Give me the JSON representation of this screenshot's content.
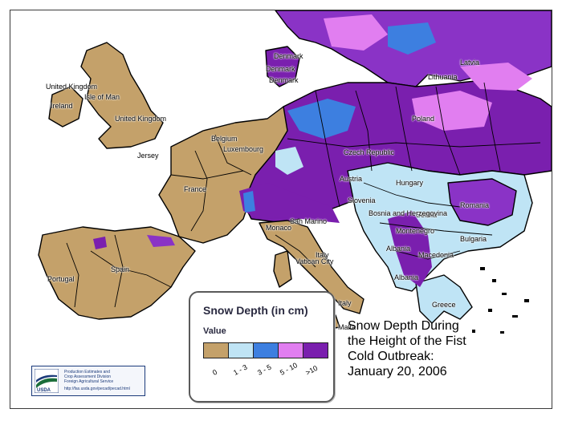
{
  "map": {
    "colors": {
      "land_base": "#c4a16a",
      "sea": "#ffffff",
      "border": "#000000"
    },
    "country_labels": [
      "United Kingdom",
      "United Kingdom",
      "Isle of Man",
      "Ireland",
      "Jersey",
      "Belgium",
      "Luxembourg",
      "Denmark",
      "Denmark",
      "Denmark",
      "France",
      "Spain",
      "Portugal",
      "Italy",
      "Italy",
      "San Marino",
      "Vatican City",
      "Malta",
      "Monaco",
      "Poland",
      "Lithuania",
      "Latvia",
      "Czech Republic",
      "Austria",
      "Slovenia",
      "Hungary",
      "Romania",
      "Serbia",
      "Bosnia and Herzegovina",
      "Montenegro",
      "Albania",
      "Albania",
      "Macedonia",
      "Bulgaria",
      "Greece"
    ]
  },
  "legend": {
    "title": "Snow Depth (in cm)",
    "subtitle": "Value",
    "classes": [
      {
        "label": "0",
        "color": "#c4a16a"
      },
      {
        "label": "1 - 3",
        "color": "#bfe4f5"
      },
      {
        "label": "3 - 5",
        "color": "#3d7fe0"
      },
      {
        "label": "5 - 10",
        "color": "#e17ef0"
      },
      {
        "label": ">10",
        "color": "#7a1fae"
      }
    ]
  },
  "caption": {
    "line1": "Snow Depth During",
    "line2": "the Height of the Fist",
    "line3": "Cold Outbreak:",
    "line4": "January 20, 2006"
  },
  "logo": {
    "line1": "Production Estimates and",
    "line2": "Crop Assessment Division",
    "line3": "Foreign Agricultural Service",
    "brand": "USDA",
    "url": "http://fas.usda.gov/pecad/pecad.html"
  }
}
